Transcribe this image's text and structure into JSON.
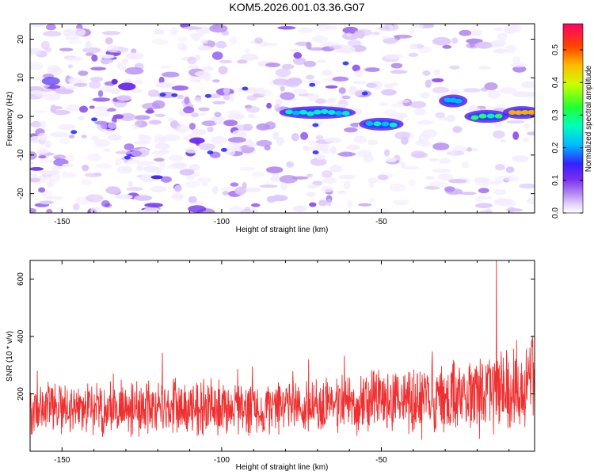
{
  "title": "KOM5.2026.001.03.36.G07",
  "colors": {
    "snr_line": "#ee3030",
    "frame": "#000000"
  },
  "chart_data": [
    {
      "type": "heatmap",
      "xlabel": "Height of straight line (km)",
      "ylabel": "Frequency (Hz)",
      "xlim": [
        -160,
        -2
      ],
      "ylim": [
        -25,
        24
      ],
      "xticks": [
        -150,
        -100,
        -50
      ],
      "xticklabels": [
        "-150",
        "-100",
        "-50"
      ],
      "yticks": [
        -20,
        -10,
        0,
        10,
        20
      ],
      "yticklabels": [
        "-20",
        "-10",
        "0",
        "10",
        "20"
      ],
      "colorbar": {
        "label": "Normalized spectral amplitude",
        "range": [
          0,
          0.58
        ],
        "ticks": [
          0.0,
          0.1,
          0.2,
          0.3,
          0.4,
          0.5
        ],
        "ticklabels": [
          "0.0",
          "0.1",
          "0.2",
          "0.3",
          "0.4",
          "0.5"
        ]
      },
      "features": [
        {
          "x_range": [
            -80,
            -60
          ],
          "freq": 1,
          "amplitude": 0.22
        },
        {
          "x_range": [
            -55,
            -45
          ],
          "freq": -2,
          "amplitude": 0.18
        },
        {
          "x_range": [
            -30,
            -25
          ],
          "freq": 4,
          "amplitude": 0.14
        },
        {
          "x_range": [
            -22,
            -12
          ],
          "freq": 0,
          "amplitude": 0.3
        },
        {
          "x_range": [
            -10,
            -2
          ],
          "freq": 1,
          "amplitude": 0.5
        }
      ]
    },
    {
      "type": "line",
      "xlabel": "Height of straight line (km)",
      "ylabel": "SNR (10 * v/v)",
      "xlim": [
        -160,
        -2
      ],
      "ylim": [
        0,
        665
      ],
      "xticks": [
        -150,
        -100,
        -50
      ],
      "xticklabels": [
        "-150",
        "-100",
        "-50"
      ],
      "yticks": [
        200,
        400,
        600
      ],
      "yticklabels": [
        "200",
        "400",
        "600"
      ],
      "series": [
        {
          "name": "SNR",
          "envelope": [
            {
              "x": -160,
              "mean": 145,
              "spread": 85
            },
            {
              "x": -130,
              "mean": 150,
              "spread": 90
            },
            {
              "x": -110,
              "mean": 155,
              "spread": 95
            },
            {
              "x": -90,
              "mean": 145,
              "spread": 85
            },
            {
              "x": -70,
              "mean": 160,
              "spread": 90
            },
            {
              "x": -50,
              "mean": 175,
              "spread": 110
            },
            {
              "x": -30,
              "mean": 180,
              "spread": 120
            },
            {
              "x": -15,
              "mean": 200,
              "spread": 140
            },
            {
              "x": -2,
              "mean": 230,
              "spread": 160
            }
          ],
          "peak": {
            "x": -14,
            "value": 665
          }
        }
      ]
    }
  ]
}
